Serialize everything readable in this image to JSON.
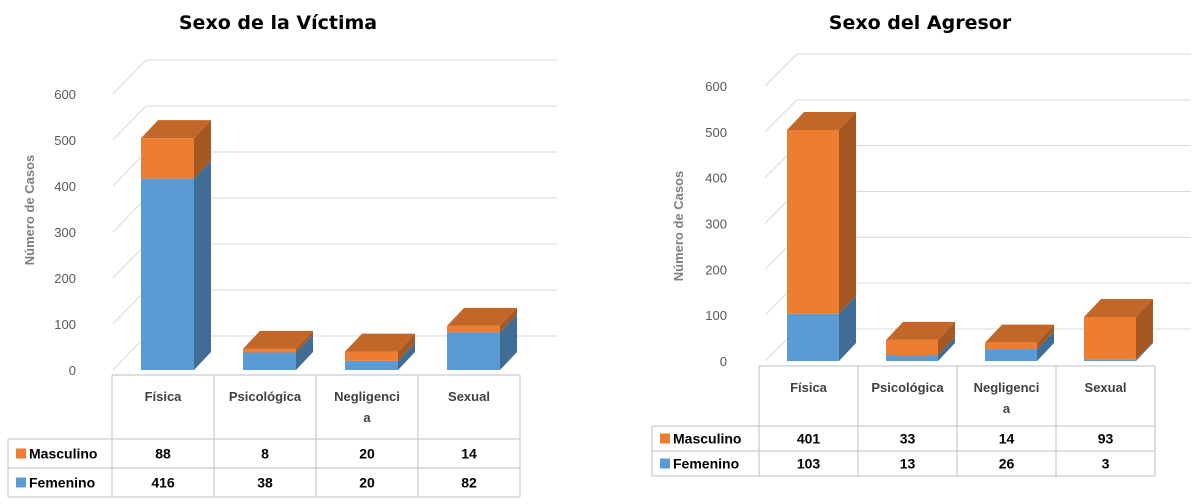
{
  "colors": {
    "masculino": "#ED7D31",
    "femenino": "#5B9BD5",
    "grid": "#d9d9d9",
    "table_border": "#bfbfbf"
  },
  "chart_data": [
    {
      "type": "bar",
      "stacked": true,
      "title": "Sexo de la Víctima",
      "ylabel": "Número de Casos",
      "xlabel": "",
      "ylim": [
        0,
        600
      ],
      "yticks": [
        "0",
        "100",
        "200",
        "300",
        "400",
        "500",
        "600"
      ],
      "categories": [
        "Física",
        "Psicológica",
        "Negligenci a",
        "Sexual"
      ],
      "series": [
        {
          "name": "Femenino",
          "values": [
            416,
            38,
            20,
            82
          ]
        },
        {
          "name": "Masculino",
          "values": [
            88,
            8,
            20,
            14
          ]
        }
      ],
      "data_table": true,
      "grid": true
    },
    {
      "type": "bar",
      "stacked": true,
      "title": "Sexo del Agresor",
      "ylabel": "Número de Casos",
      "xlabel": "",
      "ylim": [
        0,
        600
      ],
      "yticks": [
        "0",
        "100",
        "200",
        "300",
        "400",
        "500",
        "600"
      ],
      "categories": [
        "Física",
        "Psicológica",
        "Negligenci a",
        "Sexual"
      ],
      "series": [
        {
          "name": "Femenino",
          "values": [
            103,
            13,
            26,
            3
          ]
        },
        {
          "name": "Masculino",
          "values": [
            401,
            33,
            14,
            93
          ]
        }
      ],
      "data_table": true,
      "grid": true
    }
  ]
}
